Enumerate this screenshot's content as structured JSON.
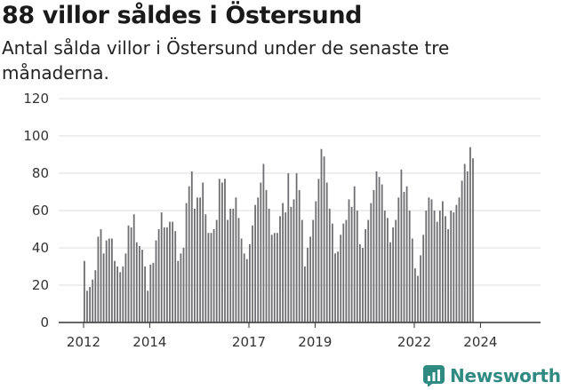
{
  "header": {
    "title": "88 villor såldes i Östersund",
    "subtitle": "Antal sålda villor i Östersund under de senaste tre månaderna."
  },
  "brand": {
    "name": "Newsworthy",
    "icon": "newsworthy-logo-icon",
    "color": "#2f8a82"
  },
  "chart_data": {
    "type": "bar",
    "title": "88 villor såldes i Östersund",
    "subtitle": "Antal sålda villor i Östersund under de senaste tre månaderna.",
    "xlabel": "",
    "ylabel": "",
    "ylim": [
      0,
      120
    ],
    "yticks": [
      0,
      20,
      40,
      60,
      80,
      100,
      120
    ],
    "xtick_labels": [
      {
        "label": "2012",
        "index": 0
      },
      {
        "label": "2014",
        "index": 24
      },
      {
        "label": "2017",
        "index": 60
      },
      {
        "label": "2019",
        "index": 84
      },
      {
        "label": "2022",
        "index": 120
      },
      {
        "label": "2024",
        "index": 144
      }
    ],
    "grid": true,
    "bar_color": "#6f6f73",
    "highlight_color": "#2a8c8c",
    "highlight_index": 155,
    "annotation": {
      "index": 154,
      "text": "88"
    },
    "values": [
      33,
      17,
      19,
      23,
      28,
      46,
      50,
      37,
      44,
      45,
      45,
      33,
      30,
      27,
      30,
      37,
      52,
      51,
      58,
      43,
      41,
      39,
      30,
      17,
      31,
      32,
      44,
      50,
      59,
      51,
      51,
      54,
      54,
      49,
      33,
      37,
      40,
      64,
      73,
      81,
      61,
      67,
      67,
      75,
      58,
      48,
      48,
      50,
      55,
      77,
      75,
      77,
      55,
      61,
      61,
      67,
      56,
      45,
      37,
      34,
      42,
      52,
      63,
      67,
      75,
      85,
      71,
      61,
      47,
      48,
      48,
      57,
      64,
      59,
      80,
      62,
      66,
      80,
      71,
      55,
      30,
      40,
      46,
      55,
      65,
      77,
      93,
      89,
      75,
      61,
      53,
      37,
      38,
      47,
      53,
      55,
      66,
      62,
      73,
      60,
      42,
      40,
      50,
      55,
      64,
      71,
      81,
      78,
      74,
      60,
      56,
      43,
      51,
      55,
      67,
      82,
      70,
      73,
      60,
      45,
      29,
      25,
      36,
      47,
      60,
      67,
      66,
      60,
      54,
      60,
      65,
      57,
      50,
      60,
      59,
      63,
      67,
      76,
      85,
      81,
      94,
      88
    ]
  }
}
